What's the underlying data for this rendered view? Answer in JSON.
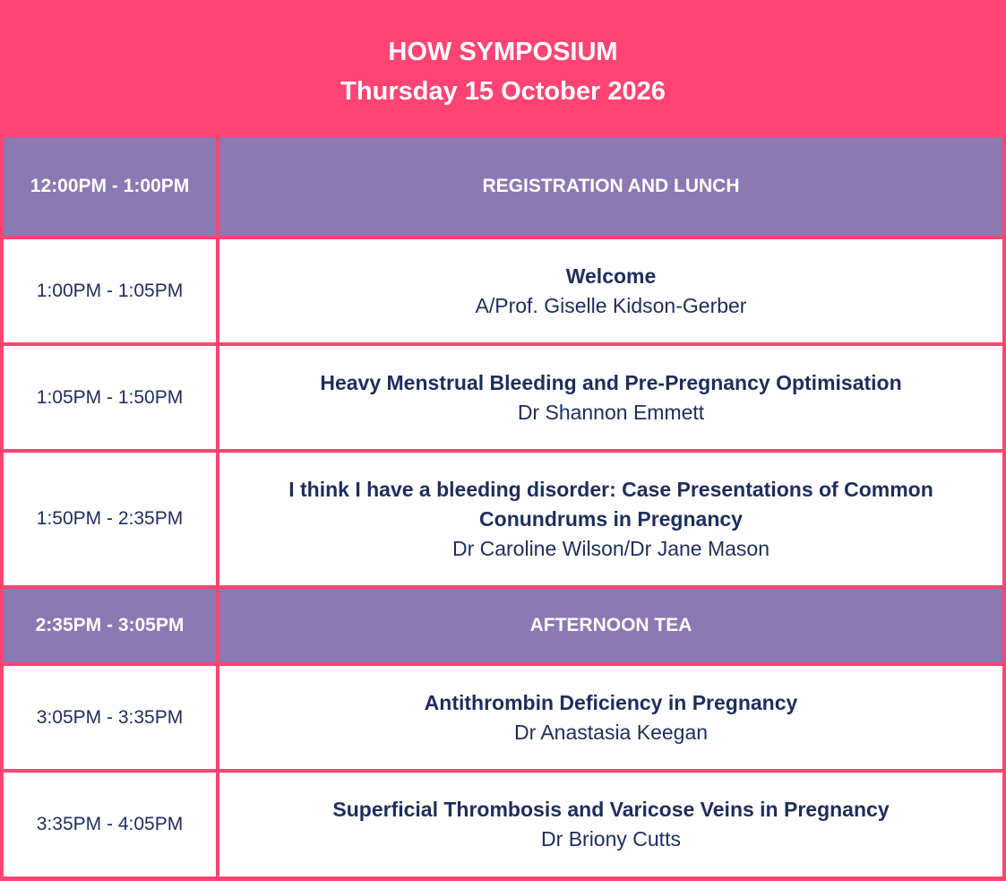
{
  "header": {
    "title": "HOW SYMPOSIUM",
    "date": "Thursday 15 October 2026"
  },
  "table": {
    "rows": [
      {
        "time": "12:00PM - 1:00PM",
        "title": "REGISTRATION AND LUNCH"
      },
      {
        "time": "1:00PM - 1:05PM",
        "title": "Welcome",
        "speaker": "A/Prof. Giselle Kidson-Gerber"
      },
      {
        "time": "1:05PM - 1:50PM",
        "title": "Heavy Menstrual Bleeding and Pre-Pregnancy Optimisation",
        "speaker": "Dr Shannon Emmett"
      },
      {
        "time": "1:50PM - 2:35PM",
        "title": "I think I have a bleeding disorder: Case Presentations of Common Conundrums in Pregnancy",
        "speaker": "Dr Caroline Wilson/Dr Jane Mason"
      },
      {
        "time": "2:35PM - 3:05PM",
        "title": "AFTERNOON TEA"
      },
      {
        "time": "3:05PM - 3:35PM",
        "title": "Antithrombin Deficiency in Pregnancy",
        "speaker": "Dr Anastasia Keegan"
      },
      {
        "time": "3:35PM - 4:05PM",
        "title": "Superficial Thrombosis and Varicose Veins in Pregnancy",
        "speaker": "Dr Briony Cutts"
      }
    ]
  }
}
